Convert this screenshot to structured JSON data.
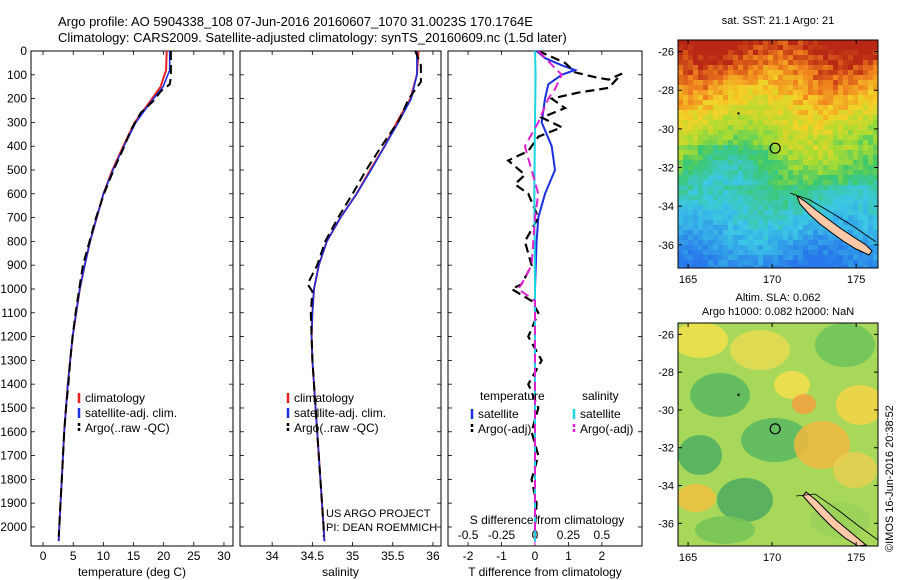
{
  "header": {
    "line1": "Argo profile: AO 5904338_108 07-Jun-2016 20160607_1070 31.0023S 170.1764E",
    "line2": "Climatology: CARS2009. Satellite-adjusted climatology: synTS_20160609.nc (1.5d later)"
  },
  "footer": {
    "project": "US ARGO PROJECT",
    "pi": "PI: DEAN ROEMMICH",
    "credit": "©IMOS 16-Jun-2016 20:38:52"
  },
  "colors": {
    "climatology": "#e8221e",
    "satellite": "#1a2fe0",
    "argo": "#000000",
    "salinity_satellite": "#19d6e0",
    "salinity_argo": "#e020d0"
  },
  "maps": {
    "sst_title": "sat. SST: 21.1 Argo: 21",
    "sla_title_1": "Altim. SLA: 0.062",
    "sla_title_2": "Argo h1000: 0.082 h2000: NaN",
    "lat_ticks": [
      "-26",
      "-28",
      "-30",
      "-32",
      "-34",
      "-36"
    ],
    "lon_ticks": [
      "165",
      "170",
      "175"
    ],
    "lon_range": [
      164.4,
      176.3
    ],
    "lat_range": [
      -25.4,
      -37.2
    ],
    "argo_position": [
      170.18,
      -31.0
    ]
  },
  "chart_data": [
    {
      "type": "line",
      "xlabel": "temperature (deg C)",
      "ylabel": "",
      "xlim": [
        -2,
        31.5
      ],
      "ylim": [
        2080,
        0
      ],
      "x_ticks": [
        "0",
        "5",
        "10",
        "15",
        "20",
        "25",
        "30"
      ],
      "y_ticks": [
        "0",
        "100",
        "200",
        "300",
        "400",
        "500",
        "600",
        "700",
        "800",
        "900",
        "1000",
        "1100",
        "1200",
        "1300",
        "1400",
        "1500",
        "1600",
        "1700",
        "1800",
        "1900",
        "2000"
      ],
      "legend": [
        "climatology",
        "satellite-adj. clim.",
        "Argo(..raw -QC)"
      ],
      "series": [
        {
          "name": "climatology",
          "points": [
            [
              20.5,
              0
            ],
            [
              20.4,
              80
            ],
            [
              19.5,
              150
            ],
            [
              17.5,
              220
            ],
            [
              15.2,
              300
            ],
            [
              13.3,
              400
            ],
            [
              11.5,
              500
            ],
            [
              10.0,
              600
            ],
            [
              8.9,
              700
            ],
            [
              7.8,
              800
            ],
            [
              6.9,
              900
            ],
            [
              6.1,
              1000
            ],
            [
              5.5,
              1100
            ],
            [
              4.9,
              1200
            ],
            [
              4.5,
              1300
            ],
            [
              4.1,
              1400
            ],
            [
              3.8,
              1500
            ],
            [
              3.5,
              1600
            ],
            [
              3.3,
              1700
            ],
            [
              3.1,
              1800
            ],
            [
              2.9,
              1900
            ],
            [
              2.7,
              2000
            ],
            [
              2.6,
              2060
            ]
          ]
        },
        {
          "name": "satellite-adj. clim.",
          "points": [
            [
              21.0,
              0
            ],
            [
              21.0,
              80
            ],
            [
              19.9,
              150
            ],
            [
              17.7,
              220
            ],
            [
              15.4,
              300
            ],
            [
              13.4,
              400
            ],
            [
              11.6,
              500
            ],
            [
              10.0,
              600
            ],
            [
              8.9,
              700
            ],
            [
              7.8,
              800
            ],
            [
              6.9,
              900
            ],
            [
              6.1,
              1000
            ],
            [
              5.5,
              1100
            ],
            [
              4.9,
              1200
            ],
            [
              4.5,
              1300
            ],
            [
              4.1,
              1400
            ],
            [
              3.8,
              1500
            ],
            [
              3.5,
              1600
            ],
            [
              3.3,
              1700
            ],
            [
              3.1,
              1800
            ],
            [
              2.9,
              1900
            ],
            [
              2.7,
              2000
            ],
            [
              2.6,
              2060
            ]
          ]
        },
        {
          "name": "Argo(..raw -QC)",
          "points": [
            [
              21.2,
              0
            ],
            [
              21.2,
              110
            ],
            [
              21.0,
              140
            ],
            [
              19.5,
              170
            ],
            [
              18.3,
              210
            ],
            [
              16.2,
              260
            ],
            [
              14.6,
              330
            ],
            [
              13.3,
              410
            ],
            [
              11.7,
              500
            ],
            [
              10.1,
              600
            ],
            [
              8.8,
              700
            ],
            [
              7.7,
              800
            ],
            [
              6.6,
              900
            ],
            [
              6.0,
              1000
            ],
            [
              5.4,
              1100
            ],
            [
              4.9,
              1200
            ],
            [
              4.5,
              1300
            ],
            [
              4.2,
              1400
            ],
            [
              3.8,
              1500
            ],
            [
              3.5,
              1600
            ],
            [
              3.3,
              1700
            ],
            [
              3.1,
              1800
            ],
            [
              2.9,
              1900
            ],
            [
              2.7,
              2000
            ],
            [
              2.6,
              2040
            ]
          ]
        }
      ]
    },
    {
      "type": "line",
      "xlabel": "salinity",
      "ylabel": "",
      "xlim": [
        33.6,
        36.1
      ],
      "ylim": [
        2080,
        0
      ],
      "x_ticks": [
        "34",
        "34.5",
        "35",
        "35.5",
        "36"
      ],
      "legend": [
        "climatology",
        "satellite-adj. clim.",
        "Argo(..raw -QC)"
      ],
      "series": [
        {
          "name": "climatology",
          "points": [
            [
              35.82,
              0
            ],
            [
              35.8,
              100
            ],
            [
              35.72,
              200
            ],
            [
              35.55,
              300
            ],
            [
              35.4,
              400
            ],
            [
              35.22,
              500
            ],
            [
              35.05,
              600
            ],
            [
              34.85,
              700
            ],
            [
              34.68,
              800
            ],
            [
              34.58,
              900
            ],
            [
              34.52,
              1000
            ],
            [
              34.5,
              1100
            ],
            [
              34.49,
              1200
            ],
            [
              34.5,
              1300
            ],
            [
              34.52,
              1400
            ],
            [
              34.54,
              1500
            ],
            [
              34.56,
              1600
            ],
            [
              34.58,
              1700
            ],
            [
              34.6,
              1800
            ],
            [
              34.62,
              1900
            ],
            [
              34.64,
              2000
            ],
            [
              34.65,
              2060
            ]
          ]
        },
        {
          "name": "satellite-adj. clim.",
          "points": [
            [
              35.8,
              0
            ],
            [
              35.8,
              100
            ],
            [
              35.73,
              200
            ],
            [
              35.57,
              300
            ],
            [
              35.4,
              400
            ],
            [
              35.23,
              500
            ],
            [
              35.05,
              600
            ],
            [
              34.85,
              700
            ],
            [
              34.68,
              800
            ],
            [
              34.58,
              900
            ],
            [
              34.52,
              1000
            ],
            [
              34.5,
              1100
            ],
            [
              34.49,
              1200
            ],
            [
              34.5,
              1300
            ],
            [
              34.52,
              1400
            ],
            [
              34.54,
              1500
            ],
            [
              34.56,
              1600
            ],
            [
              34.58,
              1700
            ],
            [
              34.6,
              1800
            ],
            [
              34.62,
              1900
            ],
            [
              34.64,
              2000
            ],
            [
              34.65,
              2060
            ]
          ]
        },
        {
          "name": "Argo(..raw -QC)",
          "points": [
            [
              35.78,
              0
            ],
            [
              35.85,
              60
            ],
            [
              35.85,
              130
            ],
            [
              35.7,
              200
            ],
            [
              35.58,
              290
            ],
            [
              35.36,
              400
            ],
            [
              35.17,
              500
            ],
            [
              35.0,
              600
            ],
            [
              34.82,
              700
            ],
            [
              34.66,
              800
            ],
            [
              34.56,
              900
            ],
            [
              34.44,
              980
            ],
            [
              34.5,
              1010
            ],
            [
              34.48,
              1100
            ],
            [
              34.49,
              1200
            ],
            [
              34.5,
              1300
            ],
            [
              34.52,
              1400
            ],
            [
              34.54,
              1500
            ],
            [
              34.56,
              1600
            ],
            [
              34.58,
              1700
            ],
            [
              34.6,
              1800
            ],
            [
              34.62,
              1900
            ],
            [
              34.64,
              2000
            ],
            [
              34.64,
              2040
            ]
          ]
        }
      ]
    },
    {
      "type": "line",
      "xlabel": "T difference from climatology",
      "xlabel_top": "S difference from climatology",
      "ylabel": "",
      "xlim": [
        -2.6,
        3.2
      ],
      "ylim": [
        2080,
        0
      ],
      "x_ticks": [
        "-2",
        "-1",
        "0",
        "1",
        "2"
      ],
      "x_ticks_top": [
        "-0.5",
        "-0.25",
        "0",
        "0.25",
        "0.5"
      ],
      "legend_groups": [
        "temperature",
        "salinity"
      ],
      "legend": [
        "satellite",
        "Argo(-adj)",
        "satellite",
        "Argo(-adj)"
      ],
      "series": [
        {
          "name": "temperature satellite",
          "points": [
            [
              0.05,
              0
            ],
            [
              0.3,
              30
            ],
            [
              0.8,
              60
            ],
            [
              1.2,
              80
            ],
            [
              0.8,
              100
            ],
            [
              0.4,
              140
            ],
            [
              0.3,
              200
            ],
            [
              0.2,
              300
            ],
            [
              0.5,
              400
            ],
            [
              0.6,
              500
            ],
            [
              0.3,
              600
            ],
            [
              0.1,
              700
            ],
            [
              0.05,
              800
            ],
            [
              0.0,
              1000
            ],
            [
              0.0,
              1500
            ],
            [
              0.0,
              2060
            ]
          ]
        },
        {
          "name": "temperature Argo(-adj)",
          "points": [
            [
              0.1,
              0
            ],
            [
              0.9,
              50
            ],
            [
              1.2,
              90
            ],
            [
              1.8,
              110
            ],
            [
              2.2,
              120
            ],
            [
              2.6,
              95
            ],
            [
              2.2,
              155
            ],
            [
              1.3,
              175
            ],
            [
              0.5,
              200
            ],
            [
              0.9,
              240
            ],
            [
              0.2,
              280
            ],
            [
              0.8,
              320
            ],
            [
              0.1,
              360
            ],
            [
              -0.2,
              420
            ],
            [
              -0.8,
              460
            ],
            [
              -0.3,
              520
            ],
            [
              -0.6,
              560
            ],
            [
              -0.2,
              600
            ],
            [
              0.1,
              700
            ],
            [
              -0.3,
              800
            ],
            [
              -0.1,
              900
            ],
            [
              -0.4,
              980
            ],
            [
              -0.7,
              1000
            ],
            [
              -0.1,
              1050
            ],
            [
              0.1,
              1100
            ],
            [
              -0.2,
              1200
            ],
            [
              0.2,
              1300
            ],
            [
              -0.2,
              1400
            ],
            [
              0.1,
              1500
            ],
            [
              -0.1,
              1600
            ],
            [
              0.1,
              1700
            ],
            [
              -0.1,
              1800
            ],
            [
              0.05,
              1900
            ],
            [
              0.0,
              2000
            ],
            [
              0.0,
              2040
            ]
          ]
        },
        {
          "name": "salinity satellite",
          "points": [
            [
              0.0,
              0
            ],
            [
              0.02,
              100
            ],
            [
              0.0,
              300
            ],
            [
              -0.02,
              600
            ],
            [
              0.0,
              1000
            ],
            [
              0.0,
              1500
            ],
            [
              0.0,
              2060
            ]
          ]
        },
        {
          "name": "salinity Argo(-adj)",
          "points": [
            [
              0.1,
              0
            ],
            [
              0.8,
              100
            ],
            [
              0.6,
              160
            ],
            [
              0.4,
              200
            ],
            [
              0.1,
              300
            ],
            [
              -0.3,
              400
            ],
            [
              -0.1,
              500
            ],
            [
              0.1,
              600
            ],
            [
              0.0,
              700
            ],
            [
              -0.1,
              900
            ],
            [
              -0.4,
              980
            ],
            [
              -0.5,
              1000
            ],
            [
              0.0,
              1050
            ],
            [
              0.0,
              1500
            ],
            [
              0.0,
              2040
            ]
          ]
        }
      ]
    }
  ]
}
